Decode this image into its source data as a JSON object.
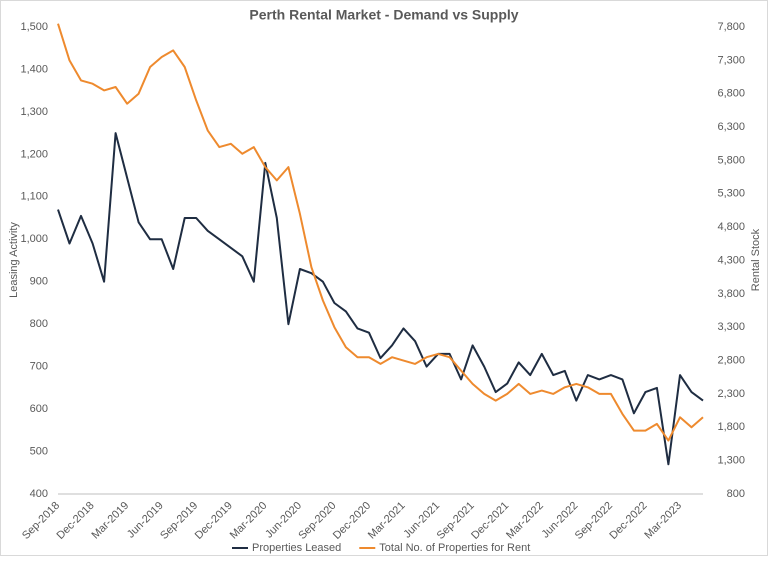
{
  "chart_data": {
    "type": "line",
    "title": "Perth Rental Market - Demand vs Supply",
    "y_label": "Leasing Activity",
    "y2_label": "Rental Stock",
    "categories": [
      "Sep-2018",
      null,
      null,
      "Dec-2018",
      null,
      null,
      "Mar-2019",
      null,
      null,
      "Jun-2019",
      null,
      null,
      "Sep-2019",
      null,
      null,
      "Dec-2019",
      null,
      null,
      "Mar-2020",
      null,
      null,
      "Jun-2020",
      null,
      null,
      "Sep-2020",
      null,
      null,
      "Dec-2020",
      null,
      null,
      "Mar-2021",
      null,
      null,
      "Jun-2021",
      null,
      null,
      "Sep-2021",
      null,
      null,
      "Dec-2021",
      null,
      null,
      "Mar-2022",
      null,
      null,
      "Jun-2022",
      null,
      null,
      "Sep-2022",
      null,
      null,
      "Dec-2022",
      null,
      null,
      "Mar-2023",
      null,
      null
    ],
    "series": [
      {
        "name": "Properties Leased",
        "color": "#1f2d42",
        "axis": "y",
        "values": [
          1070,
          990,
          1055,
          990,
          900,
          1250,
          1145,
          1040,
          1000,
          1000,
          930,
          1050,
          1050,
          1020,
          1000,
          980,
          960,
          900,
          1180,
          1050,
          800,
          930,
          920,
          900,
          850,
          830,
          790,
          780,
          720,
          750,
          790,
          760,
          700,
          730,
          730,
          670,
          750,
          700,
          640,
          660,
          710,
          680,
          730,
          680,
          690,
          620,
          680,
          670,
          680,
          670,
          590,
          640,
          650,
          470,
          680,
          640,
          620
        ]
      },
      {
        "name": "Total No. of Properties for Rent",
        "color": "#ee8a2e",
        "axis": "y2",
        "values": [
          7850,
          7300,
          7000,
          6950,
          6850,
          6900,
          6650,
          6800,
          7200,
          7350,
          7450,
          7200,
          6700,
          6250,
          6000,
          6050,
          5900,
          6000,
          5700,
          5500,
          5700,
          5000,
          4200,
          3700,
          3300,
          3000,
          2850,
          2850,
          2750,
          2850,
          2800,
          2750,
          2850,
          2900,
          2850,
          2650,
          2450,
          2300,
          2200,
          2300,
          2450,
          2300,
          2350,
          2300,
          2400,
          2450,
          2400,
          2300,
          2300,
          2000,
          1750,
          1750,
          1850,
          1600,
          1950,
          1800,
          1950
        ]
      }
    ],
    "ylim": [
      400,
      1500
    ],
    "yticks": [
      400,
      500,
      600,
      700,
      800,
      900,
      {
        "value": 1000,
        "label": "1,000"
      },
      {
        "value": 1100,
        "label": "1,100"
      },
      {
        "value": 1200,
        "label": "1,200"
      },
      {
        "value": 1300,
        "label": "1,300"
      },
      {
        "value": 1400,
        "label": "1,400"
      },
      {
        "value": 1500,
        "label": "1,500"
      }
    ],
    "y2lim": [
      800,
      7800
    ],
    "y2ticks": [
      800,
      {
        "value": 1300,
        "label": "1,300"
      },
      {
        "value": 1800,
        "label": "1,800"
      },
      {
        "value": 2300,
        "label": "2,300"
      },
      {
        "value": 2800,
        "label": "2,800"
      },
      {
        "value": 3300,
        "label": "3,300"
      },
      {
        "value": 3800,
        "label": "3,800"
      },
      {
        "value": 4300,
        "label": "4,300"
      },
      {
        "value": 4800,
        "label": "4,800"
      },
      {
        "value": 5300,
        "label": "5,300"
      },
      {
        "value": 5800,
        "label": "5,800"
      },
      {
        "value": 6300,
        "label": "6,300"
      },
      {
        "value": 6800,
        "label": "6,800"
      },
      {
        "value": 7300,
        "label": "7,300"
      },
      {
        "value": 7800,
        "label": "7,800"
      }
    ],
    "grid": false,
    "legend": "bottom"
  }
}
